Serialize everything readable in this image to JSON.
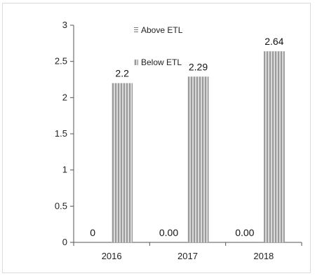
{
  "chart_data": {
    "type": "bar",
    "categories": [
      "2016",
      "2017",
      "2018"
    ],
    "series": [
      {
        "name": "Above ETL",
        "values": [
          0,
          0,
          0
        ],
        "labels": [
          "0",
          "0.00",
          "0.00"
        ],
        "color": "#a6a6a6"
      },
      {
        "name": "Below ETL",
        "values": [
          2.2,
          2.29,
          2.64
        ],
        "labels": [
          "2.2",
          "2.29",
          "2.64"
        ],
        "color": "#a6a6a6"
      }
    ],
    "ylim": [
      0,
      3
    ],
    "yticks": [
      "0",
      "0.5",
      "1",
      "1.5",
      "2",
      "2.5",
      "3"
    ],
    "legend_position": "top-center",
    "grid": false,
    "title": "",
    "xlabel": "",
    "ylabel": ""
  }
}
